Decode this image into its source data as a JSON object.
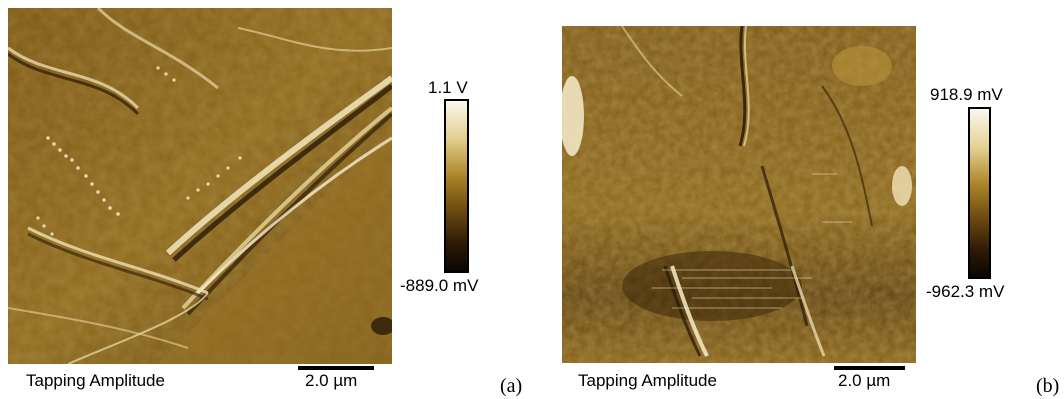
{
  "panels": [
    {
      "id": "a",
      "tag": "(a)",
      "caption": "Tapping Amplitude",
      "scale_label": "2.0 µm",
      "colorbar_max": "1.1 V",
      "colorbar_min": "-889.0 mV"
    },
    {
      "id": "b",
      "tag": "(b)",
      "caption": "Tapping Amplitude",
      "scale_label": "2.0 µm",
      "colorbar_max": "918.9 mV",
      "colorbar_min": "-962.3 mV"
    }
  ],
  "colors": {
    "image_dark": "#2a1a06",
    "image_mid": "#8a6418",
    "image_light": "#d8bf73",
    "image_highlight": "#f4ecd0",
    "colorbar_top": "#fbf8ef",
    "colorbar_mid": "#8d6b1e",
    "colorbar_bottom": "#0a0604"
  }
}
